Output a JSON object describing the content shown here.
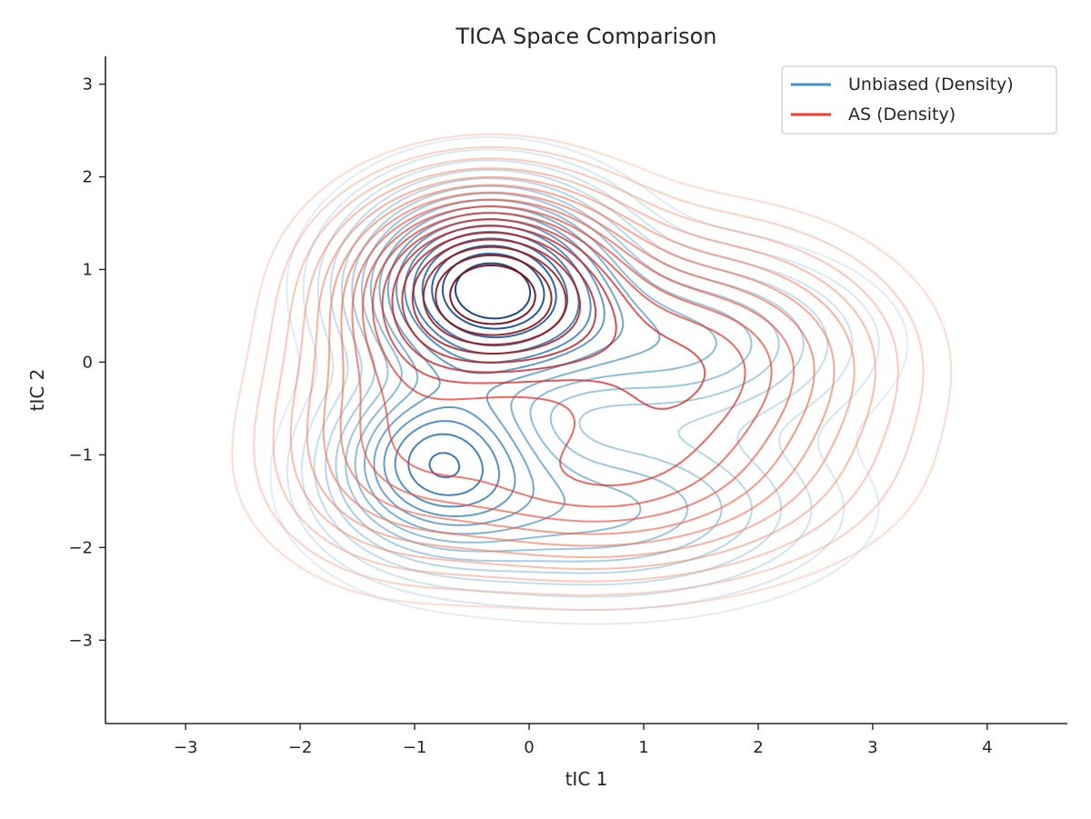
{
  "chart_data": {
    "type": "contour",
    "title": "TICA Space Comparison",
    "xlabel": "tIC 1",
    "ylabel": "tIC 2",
    "xlim": [
      -3.7,
      4.7
    ],
    "ylim": [
      -3.9,
      3.3
    ],
    "xticks": [
      -3,
      -2,
      -1,
      0,
      1,
      2,
      3,
      4
    ],
    "yticks": [
      -3,
      -2,
      -1,
      0,
      1,
      2,
      3
    ],
    "xtick_labels": [
      "−3",
      "−2",
      "−1",
      "0",
      "1",
      "2",
      "3",
      "4"
    ],
    "ytick_labels": [
      "−3",
      "−2",
      "−1",
      "0",
      "1",
      "2",
      "3"
    ],
    "grid": false,
    "legend_position": "top-right",
    "series": [
      {
        "name": "Unbiased (Density)",
        "color": "#4292c6",
        "colormap": "Blues",
        "levels": 17,
        "components": [
          {
            "center": [
              -0.35,
              0.8
            ],
            "sigma": [
              0.65,
              0.6
            ],
            "weight": 1.0
          },
          {
            "center": [
              -0.8,
              -1.05
            ],
            "sigma": [
              0.55,
              0.55
            ],
            "weight": 0.6
          },
          {
            "center": [
              1.3,
              0.2
            ],
            "sigma": [
              0.9,
              0.55
            ],
            "weight": 0.3
          },
          {
            "center": [
              0.6,
              -1.6
            ],
            "sigma": [
              1.1,
              0.55
            ],
            "weight": 0.3
          }
        ]
      },
      {
        "name": "AS (Density)",
        "color": "#ef3b2c",
        "colormap": "Reds",
        "levels": 17,
        "components": [
          {
            "center": [
              -0.35,
              0.78
            ],
            "sigma": [
              0.7,
              0.62
            ],
            "weight": 1.0
          },
          {
            "center": [
              1.4,
              0.0
            ],
            "sigma": [
              0.95,
              0.75
            ],
            "weight": 0.45
          },
          {
            "center": [
              0.5,
              -1.3
            ],
            "sigma": [
              1.2,
              0.6
            ],
            "weight": 0.35
          },
          {
            "center": [
              -1.2,
              -0.6
            ],
            "sigma": [
              0.6,
              0.8
            ],
            "weight": 0.25
          }
        ]
      }
    ]
  }
}
